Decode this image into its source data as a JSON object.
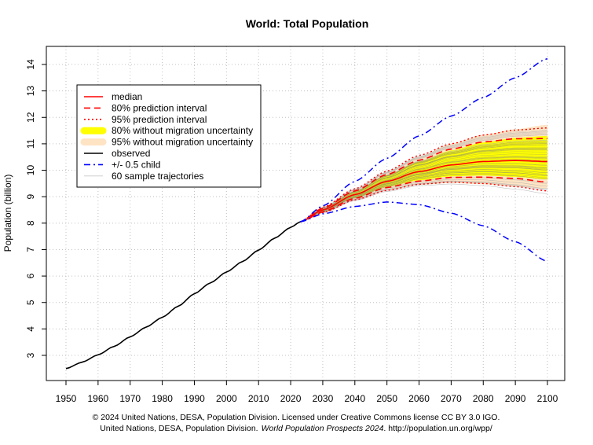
{
  "chart_data": {
    "type": "line",
    "title": "World: Total Population",
    "xlabel": "",
    "ylabel": "Population (billion)",
    "xlim": [
      1950,
      2100
    ],
    "ylim": [
      2,
      14.5
    ],
    "x_ticks": [
      1950,
      1960,
      1970,
      1980,
      1990,
      2000,
      2010,
      2020,
      2030,
      2040,
      2050,
      2060,
      2070,
      2080,
      2090,
      2100
    ],
    "y_ticks": [
      3,
      4,
      5,
      6,
      7,
      8,
      9,
      10,
      11,
      12,
      13,
      14
    ],
    "grid": true,
    "legend_position": "top-left",
    "legend": [
      {
        "label": "median",
        "color": "#ff0000",
        "style": "solid"
      },
      {
        "label": "80% prediction interval",
        "color": "#ff0000",
        "style": "dashed"
      },
      {
        "label": "95% prediction interval",
        "color": "#ff0000",
        "style": "dotted"
      },
      {
        "label": "80% without migration uncertainty",
        "color": "#ffff00",
        "style": "thick"
      },
      {
        "label": "95% without migration uncertainty",
        "color": "#ffe4c4",
        "style": "thick"
      },
      {
        "label": "observed",
        "color": "#000000",
        "style": "solid"
      },
      {
        "label": "+/- 0.5 child",
        "color": "#0000ff",
        "style": "dotdash"
      },
      {
        "label": "60 sample trajectories",
        "color": "#c8c8c8",
        "style": "thin"
      }
    ],
    "observed": {
      "x": [
        1950,
        1955,
        1960,
        1965,
        1970,
        1975,
        1980,
        1985,
        1990,
        1995,
        2000,
        2005,
        2010,
        2015,
        2020,
        2023
      ],
      "y": [
        2.5,
        2.74,
        3.02,
        3.34,
        3.7,
        4.07,
        4.44,
        4.86,
        5.33,
        5.74,
        6.15,
        6.55,
        6.98,
        7.43,
        7.84,
        8.05
      ]
    },
    "projection_x": [
      2023,
      2030,
      2040,
      2050,
      2060,
      2070,
      2080,
      2090,
      2100
    ],
    "median": [
      8.05,
      8.5,
      9.08,
      9.58,
      9.95,
      10.2,
      10.33,
      10.37,
      10.33
    ],
    "pi80_upper": [
      8.05,
      8.56,
      9.22,
      9.84,
      10.38,
      10.8,
      11.07,
      11.19,
      11.2
    ],
    "pi80_lower": [
      8.05,
      8.43,
      8.94,
      9.35,
      9.59,
      9.73,
      9.74,
      9.69,
      9.55
    ],
    "pi95_upper": [
      8.05,
      8.6,
      9.3,
      9.97,
      10.56,
      11.0,
      11.33,
      11.52,
      11.6
    ],
    "pi95_lower": [
      8.05,
      8.4,
      8.88,
      9.24,
      9.47,
      9.55,
      9.5,
      9.38,
      9.22
    ],
    "no_migration_80_upper": [
      8.05,
      8.55,
      9.2,
      9.81,
      10.33,
      10.75,
      11.05,
      11.22,
      11.3
    ],
    "no_migration_80_lower": [
      8.05,
      8.44,
      8.96,
      9.38,
      9.62,
      9.77,
      9.8,
      9.75,
      9.65
    ],
    "no_migration_95_upper": [
      8.05,
      8.6,
      9.29,
      9.95,
      10.53,
      11.0,
      11.34,
      11.55,
      11.72
    ],
    "no_migration_95_lower": [
      8.05,
      8.4,
      8.88,
      9.25,
      9.45,
      9.52,
      9.47,
      9.38,
      9.3
    ],
    "plus_half_child": [
      8.05,
      8.65,
      9.58,
      10.45,
      11.3,
      12.05,
      12.75,
      13.5,
      14.22
    ],
    "minus_half_child": [
      8.05,
      8.35,
      8.63,
      8.8,
      8.7,
      8.38,
      7.9,
      7.3,
      6.55
    ],
    "sample_trajectories_count": 60
  },
  "footer": {
    "line1": "© 2024 United Nations, DESA, Population Division. Licensed under Creative Commons license CC BY 3.0 IGO.",
    "line2_prefix": "United Nations, DESA, Population Division.",
    "line2_italic": "World Population Prospects 2024",
    "line2_suffix": ". http://population.un.org/wpp/"
  }
}
